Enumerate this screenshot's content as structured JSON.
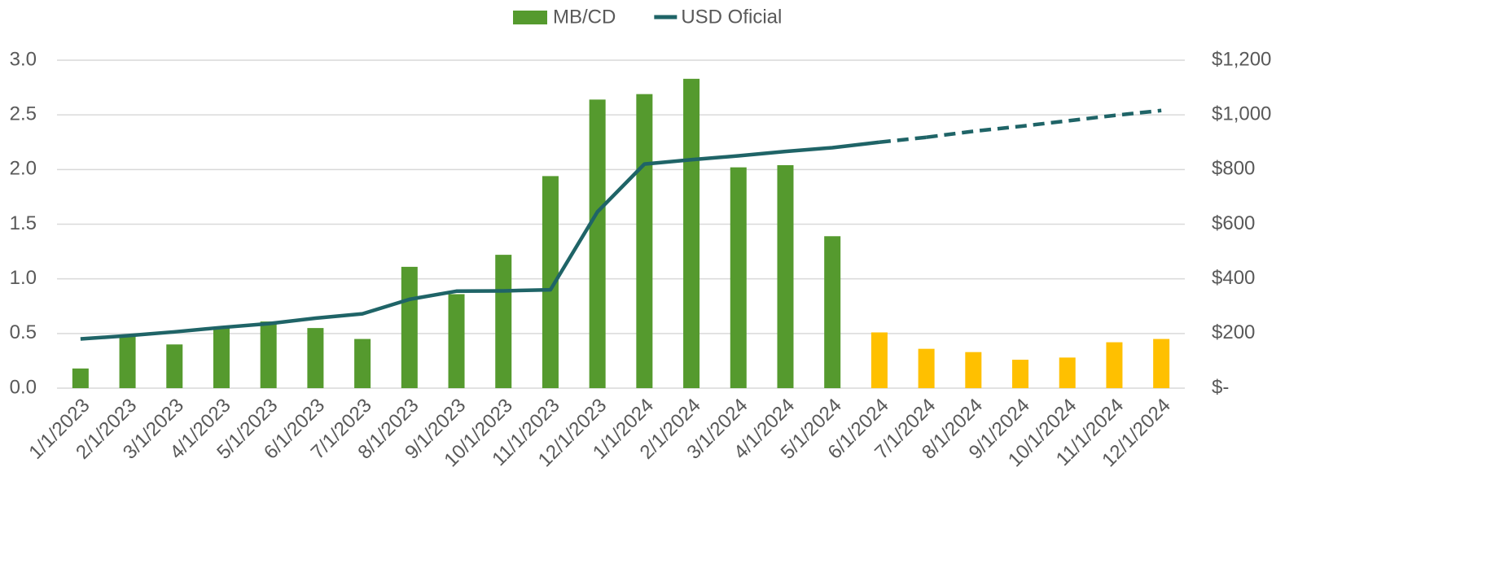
{
  "chart_data": {
    "type": "bar",
    "categories": [
      "1/1/2023",
      "2/1/2023",
      "3/1/2023",
      "4/1/2023",
      "5/1/2023",
      "6/1/2023",
      "7/1/2023",
      "8/1/2023",
      "9/1/2023",
      "10/1/2023",
      "11/1/2023",
      "12/1/2023",
      "1/1/2024",
      "2/1/2024",
      "3/1/2024",
      "4/1/2024",
      "5/1/2024",
      "6/1/2024",
      "7/1/2024",
      "8/1/2024",
      "9/1/2024",
      "10/1/2024",
      "11/1/2024",
      "12/1/2024"
    ],
    "series": [
      {
        "name": "MB/CD",
        "type": "bar",
        "color": "#559a2e",
        "colors": [
          "#559a2e",
          "#559a2e",
          "#559a2e",
          "#559a2e",
          "#559a2e",
          "#559a2e",
          "#559a2e",
          "#559a2e",
          "#559a2e",
          "#559a2e",
          "#559a2e",
          "#559a2e",
          "#559a2e",
          "#559a2e",
          "#559a2e",
          "#559a2e",
          "#559a2e",
          "#ffc000",
          "#ffc000",
          "#ffc000",
          "#ffc000",
          "#ffc000",
          "#ffc000",
          "#ffc000"
        ],
        "values": [
          0.18,
          0.48,
          0.4,
          0.55,
          0.61,
          0.55,
          0.45,
          1.11,
          0.86,
          1.22,
          1.94,
          2.64,
          2.69,
          2.83,
          2.02,
          2.04,
          1.39,
          0.51,
          0.36,
          0.33,
          0.26,
          0.28,
          0.42,
          0.45
        ]
      },
      {
        "name": "USD Oficial",
        "type": "line",
        "axis": "y2",
        "color": "#1f6467",
        "dashed_from": "6/1/2024",
        "values": [
          180,
          192,
          206,
          222,
          236,
          256,
          272,
          325,
          355,
          356,
          360,
          645,
          820,
          836,
          850,
          866,
          880,
          900,
          918,
          940,
          958,
          978,
          998,
          1016
        ]
      }
    ],
    "ylim": [
      0,
      3
    ],
    "yticks": [
      {
        "value": 0,
        "label": "0.0"
      },
      {
        "value": 0.5,
        "label": "0.5"
      },
      {
        "value": 1,
        "label": "1.0"
      },
      {
        "value": 1.5,
        "label": "1.5"
      },
      {
        "value": 2,
        "label": "2.0"
      },
      {
        "value": 2.5,
        "label": "2.5"
      },
      {
        "value": 3,
        "label": "3.0"
      }
    ],
    "y2lim": [
      0,
      1200
    ],
    "y2ticks": [
      {
        "value": 0,
        "label": "$-"
      },
      {
        "value": 200,
        "label": "$200"
      },
      {
        "value": 400,
        "label": "$400"
      },
      {
        "value": 600,
        "label": "$600"
      },
      {
        "value": 800,
        "label": "$800"
      },
      {
        "value": 1000,
        "label": "$1,000"
      },
      {
        "value": 1200,
        "label": "$1,200"
      }
    ],
    "grid": true,
    "legend": "top"
  }
}
